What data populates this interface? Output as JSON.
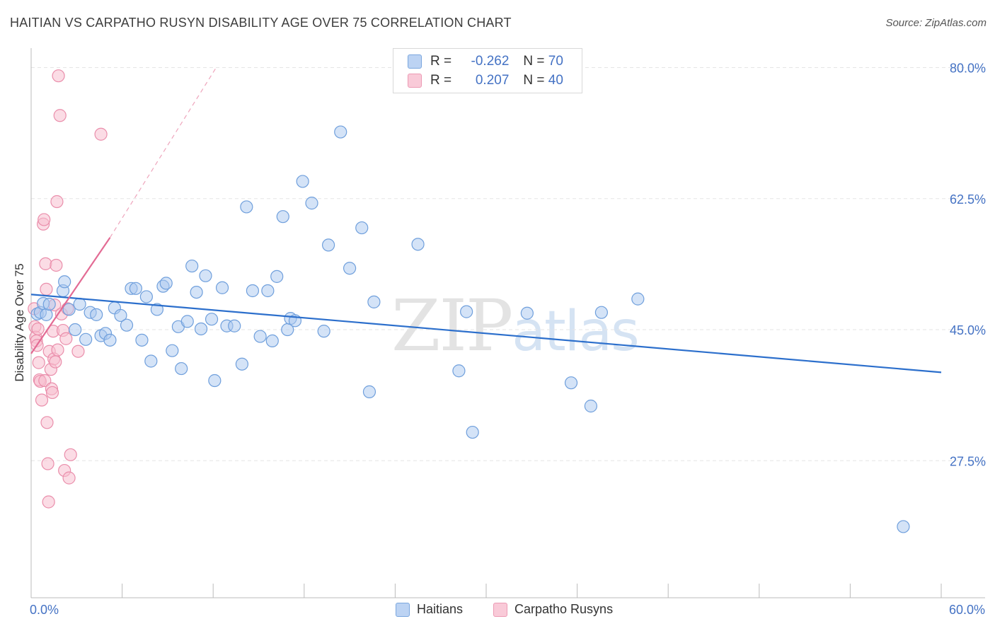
{
  "title": "HAITIAN VS CARPATHO RUSYN DISABILITY AGE OVER 75 CORRELATION CHART",
  "source": "Source: ZipAtlas.com",
  "watermark": {
    "zip": "ZIP",
    "atlas": "atlas"
  },
  "legend": {
    "r_label": "R =",
    "n_label": "N =",
    "rows": [
      {
        "r": "-0.262",
        "n": "70"
      },
      {
        "r": "0.207",
        "n": "40"
      }
    ]
  },
  "colors": {
    "haitian_fill": "#a9c8f0",
    "haitian_stroke": "#6f9fdc",
    "haitian_line": "#2c6fcc",
    "rusyn_fill": "#f7bfd0",
    "rusyn_stroke": "#ea8eab",
    "rusyn_line": "#e36b94",
    "tick_text": "#4472c4",
    "grid": "#e6e6e6"
  },
  "chart_data": {
    "type": "scatter",
    "title": "HAITIAN VS CARPATHO RUSYN DISABILITY AGE OVER 75 CORRELATION CHART",
    "xlabel": "",
    "ylabel": "Disability Age Over 75",
    "xlim": [
      0,
      60
    ],
    "ylim": [
      9.2,
      82.6
    ],
    "x_tick_labels": [
      "0.0%",
      "60.0%"
    ],
    "y_ticks": [
      27.5,
      45.0,
      62.5,
      80.0
    ],
    "y_tick_labels": [
      "27.5%",
      "45.0%",
      "62.5%",
      "80.0%"
    ],
    "grid": true,
    "legend_position": "top-center",
    "series": [
      {
        "name": "Haitians",
        "r": -0.262,
        "n": 70,
        "trend": {
          "x": [
            0,
            60
          ],
          "y": [
            49.7,
            39.3
          ]
        },
        "points": [
          [
            0.4,
            47.1
          ],
          [
            0.6,
            47.3
          ],
          [
            0.8,
            48.5
          ],
          [
            1.0,
            47.0
          ],
          [
            1.2,
            48.4
          ],
          [
            2.1,
            50.2
          ],
          [
            2.2,
            51.4
          ],
          [
            2.5,
            47.7
          ],
          [
            2.9,
            45.0
          ],
          [
            3.2,
            48.4
          ],
          [
            3.6,
            43.7
          ],
          [
            3.9,
            47.3
          ],
          [
            4.3,
            47.0
          ],
          [
            4.6,
            44.2
          ],
          [
            4.9,
            44.5
          ],
          [
            5.2,
            43.6
          ],
          [
            5.5,
            47.9
          ],
          [
            5.9,
            46.9
          ],
          [
            6.3,
            45.6
          ],
          [
            6.6,
            50.5
          ],
          [
            6.9,
            50.5
          ],
          [
            7.3,
            43.6
          ],
          [
            7.6,
            49.4
          ],
          [
            7.9,
            40.8
          ],
          [
            8.3,
            47.7
          ],
          [
            8.7,
            50.8
          ],
          [
            8.9,
            51.2
          ],
          [
            9.3,
            42.2
          ],
          [
            9.7,
            45.4
          ],
          [
            9.9,
            39.8
          ],
          [
            10.3,
            46.1
          ],
          [
            10.6,
            53.5
          ],
          [
            10.9,
            50.0
          ],
          [
            11.2,
            45.1
          ],
          [
            11.5,
            52.2
          ],
          [
            11.9,
            46.4
          ],
          [
            12.1,
            38.2
          ],
          [
            12.6,
            50.6
          ],
          [
            12.9,
            45.5
          ],
          [
            13.4,
            45.5
          ],
          [
            13.9,
            40.4
          ],
          [
            14.2,
            61.4
          ],
          [
            14.6,
            50.2
          ],
          [
            15.1,
            44.1
          ],
          [
            15.6,
            50.2
          ],
          [
            15.9,
            43.5
          ],
          [
            16.2,
            52.1
          ],
          [
            16.6,
            60.1
          ],
          [
            16.9,
            45.0
          ],
          [
            17.1,
            46.5
          ],
          [
            17.4,
            46.2
          ],
          [
            17.9,
            64.8
          ],
          [
            18.5,
            61.9
          ],
          [
            19.3,
            44.8
          ],
          [
            19.6,
            56.3
          ],
          [
            20.4,
            71.4
          ],
          [
            21.0,
            53.2
          ],
          [
            21.8,
            58.6
          ],
          [
            22.3,
            36.7
          ],
          [
            22.6,
            48.7
          ],
          [
            25.5,
            56.4
          ],
          [
            28.2,
            39.5
          ],
          [
            28.7,
            47.4
          ],
          [
            29.1,
            31.3
          ],
          [
            32.7,
            47.2
          ],
          [
            35.6,
            37.9
          ],
          [
            36.9,
            34.8
          ],
          [
            37.6,
            47.3
          ],
          [
            40.0,
            49.1
          ],
          [
            57.5,
            18.7
          ]
        ]
      },
      {
        "name": "Carpatho Rusyns",
        "r": 0.207,
        "n": 40,
        "trend": {
          "x": [
            0,
            5.2
          ],
          "y": [
            41.8,
            57.3
          ]
        },
        "trend_extended": {
          "x": [
            5.2,
            12.2
          ],
          "y": [
            57.3,
            80.0
          ]
        },
        "points": [
          [
            0.2,
            47.8
          ],
          [
            0.25,
            45.4
          ],
          [
            0.3,
            44.0
          ],
          [
            0.35,
            43.5
          ],
          [
            0.4,
            42.9
          ],
          [
            0.45,
            45.1
          ],
          [
            0.5,
            40.6
          ],
          [
            0.55,
            38.3
          ],
          [
            0.6,
            38.1
          ],
          [
            0.7,
            35.6
          ],
          [
            0.8,
            59.1
          ],
          [
            0.85,
            59.7
          ],
          [
            0.9,
            38.2
          ],
          [
            0.95,
            53.8
          ],
          [
            1.0,
            50.4
          ],
          [
            1.05,
            32.6
          ],
          [
            1.1,
            27.1
          ],
          [
            1.15,
            22.0
          ],
          [
            1.2,
            42.1
          ],
          [
            1.3,
            39.7
          ],
          [
            1.35,
            37.1
          ],
          [
            1.4,
            36.6
          ],
          [
            1.45,
            44.8
          ],
          [
            1.5,
            41.1
          ],
          [
            1.55,
            48.3
          ],
          [
            1.6,
            40.7
          ],
          [
            1.65,
            53.6
          ],
          [
            1.7,
            62.1
          ],
          [
            1.75,
            42.3
          ],
          [
            1.8,
            78.9
          ],
          [
            1.9,
            73.6
          ],
          [
            2.0,
            47.1
          ],
          [
            2.1,
            44.9
          ],
          [
            2.2,
            26.2
          ],
          [
            2.3,
            43.8
          ],
          [
            2.4,
            47.8
          ],
          [
            2.5,
            25.2
          ],
          [
            2.6,
            28.3
          ],
          [
            3.1,
            42.1
          ],
          [
            4.6,
            71.1
          ]
        ]
      }
    ]
  }
}
